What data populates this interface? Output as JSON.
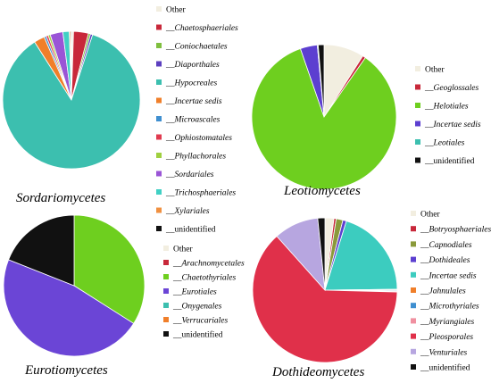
{
  "chart_data": [
    {
      "type": "pie",
      "title": "Sordariomycetes",
      "legend": [
        "Other",
        "__Chaetosphaeriales",
        "__Coniochaetales",
        "__Diaporthales",
        "__Hypocreales",
        "__Incertae sedis",
        "__Microascales",
        "__Ophiostomatales",
        "__Phyllachorales",
        "__Sordariales",
        "__Trichosphaeriales",
        "__Xylariales",
        "__unidentified"
      ],
      "slices": [
        {
          "label": "Other",
          "value": 0.5,
          "color": "#f2eee0"
        },
        {
          "label": "__Chaetosphaeriales",
          "value": 3.5,
          "color": "#c8283a"
        },
        {
          "label": "__Coniochaetales",
          "value": 0.5,
          "color": "#7fbf3f"
        },
        {
          "label": "__Diaporthales",
          "value": 0.5,
          "color": "#5c3fbf"
        },
        {
          "label": "__Hypocreales",
          "value": 86,
          "color": "#3cbfaf"
        },
        {
          "label": "__Incertae sedis",
          "value": 2.5,
          "color": "#f07f2a"
        },
        {
          "label": "__Microascales",
          "value": 0.5,
          "color": "#3f8fd0"
        },
        {
          "label": "__Ophiostomatales",
          "value": 0.5,
          "color": "#e03a4f"
        },
        {
          "label": "__Phyllachorales",
          "value": 0.5,
          "color": "#9fd040"
        },
        {
          "label": "__Sordariales",
          "value": 3,
          "color": "#9a55d6"
        },
        {
          "label": "__Trichosphaeriales",
          "value": 1.5,
          "color": "#40d0c4"
        },
        {
          "label": "__Xylariales",
          "value": 0.3,
          "color": "#f09040"
        },
        {
          "label": "__unidentified",
          "value": 0.2,
          "color": "#111111"
        }
      ]
    },
    {
      "type": "pie",
      "title": "Leotiomycetes",
      "legend": [
        "Other",
        "__Geoglossales",
        "__Helotiales",
        "__Incertae sedis",
        "__Leotiales",
        "__unidentified"
      ],
      "slices": [
        {
          "label": "Other",
          "value": 9,
          "color": "#f2eee0"
        },
        {
          "label": "__Geoglossales",
          "value": 0.7,
          "color": "#c8283a"
        },
        {
          "label": "__Helotiales",
          "value": 85,
          "color": "#6ecf1f"
        },
        {
          "label": "__Incertae sedis",
          "value": 3.8,
          "color": "#5c3fd0"
        },
        {
          "label": "__Leotiales",
          "value": 0.2,
          "color": "#3cbfaf"
        },
        {
          "label": "__unidentified",
          "value": 1.3,
          "color": "#111111"
        }
      ]
    },
    {
      "type": "pie",
      "title": "Eurotiomycetes",
      "legend": [
        "Other",
        "__Arachnomycetales",
        "__Chaetothyriales",
        "__Eurotiales",
        "__Onygenales",
        "__Verrucariales",
        "__unidentified"
      ],
      "slices": [
        {
          "label": "Other",
          "value": 0,
          "color": "#f2eee0"
        },
        {
          "label": "__Arachnomycetales",
          "value": 0,
          "color": "#c8283a"
        },
        {
          "label": "__Chaetothyriales",
          "value": 34,
          "color": "#6ecf1f"
        },
        {
          "label": "__Eurotiales",
          "value": 47,
          "color": "#6b45d6"
        },
        {
          "label": "__Onygenales",
          "value": 0,
          "color": "#3cbfaf"
        },
        {
          "label": "__Verrucariales",
          "value": 0,
          "color": "#f07f2a"
        },
        {
          "label": "__unidentified",
          "value": 19,
          "color": "#111111"
        }
      ]
    },
    {
      "type": "pie",
      "title": "Dothideomycetes",
      "legend": [
        "Other",
        "__Botryosphaeriales",
        "__Capnodiales",
        "__Dothideales",
        "__Incertae sedis",
        "__Jahnulales",
        "__Microthyriales",
        "__Myriangiales",
        "__Pleosporales",
        "__Venturiales",
        "__unidentified"
      ],
      "slices": [
        {
          "label": "Other",
          "value": 2,
          "color": "#f2eee0"
        },
        {
          "label": "__Botryosphaeriales",
          "value": 0.5,
          "color": "#c8283a"
        },
        {
          "label": "__Capnodiales",
          "value": 1.5,
          "color": "#8a9a3a"
        },
        {
          "label": "__Dothideales",
          "value": 0.8,
          "color": "#5c3fd0"
        },
        {
          "label": "__Incertae sedis",
          "value": 20,
          "color": "#3cccbf"
        },
        {
          "label": "__Jahnulales",
          "value": 0.2,
          "color": "#f07f2a"
        },
        {
          "label": "__Microthyriales",
          "value": 0.2,
          "color": "#3f8fd0"
        },
        {
          "label": "__Myriangiales",
          "value": 0.2,
          "color": "#f090a0"
        },
        {
          "label": "__Pleosporales",
          "value": 63,
          "color": "#e0304a"
        },
        {
          "label": "__Venturiales",
          "value": 10,
          "color": "#b7a6e0"
        },
        {
          "label": "__unidentified",
          "value": 1.6,
          "color": "#111111"
        }
      ]
    }
  ]
}
